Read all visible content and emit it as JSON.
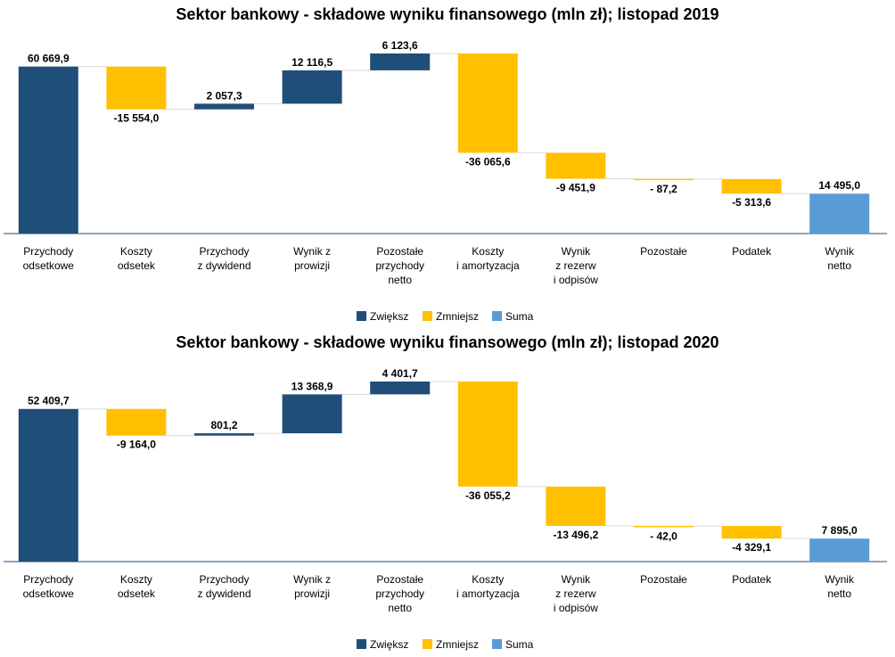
{
  "chart_data": [
    {
      "type": "waterfall",
      "title": "Sektor bankowy - składowe wyniku finansowego (mln zł); listopad 2019",
      "categories": [
        [
          "Przychody",
          "odsetkowe"
        ],
        [
          "Koszty",
          "odsetek"
        ],
        [
          "Przychody",
          "z dywidend"
        ],
        [
          "Wynik z",
          "prowizji"
        ],
        [
          "Pozostałe",
          "przychody",
          "netto"
        ],
        [
          "Koszty",
          "i amortyzacja"
        ],
        [
          "Wynik",
          "z rezerw",
          "i odpisów"
        ],
        [
          "Pozostałe"
        ],
        [
          "Podatek"
        ],
        [
          "Wynik",
          "netto"
        ]
      ],
      "values": [
        60669.9,
        -15554.0,
        2057.3,
        12116.5,
        6123.6,
        -36065.6,
        -9451.9,
        -87.2,
        -5313.6,
        14495.0
      ],
      "value_labels": [
        "60 669,9",
        "-15 554,0",
        "2 057,3",
        "12 116,5",
        "6 123,6",
        "-36 065,6",
        "-9 451,9",
        "- 87,2",
        "-5 313,6",
        "14 495,0"
      ],
      "measure": [
        "relative",
        "relative",
        "relative",
        "relative",
        "relative",
        "relative",
        "relative",
        "relative",
        "relative",
        "total"
      ],
      "legend": [
        {
          "name": "Zwiększ",
          "color": "#1f4e79"
        },
        {
          "name": "Zmniejsz",
          "color": "#ffc000"
        },
        {
          "name": "Suma",
          "color": "#5b9bd5"
        }
      ]
    },
    {
      "type": "waterfall",
      "title": "Sektor bankowy - składowe wyniku finansowego (mln zł); listopad 2020",
      "categories": [
        [
          "Przychody",
          "odsetkowe"
        ],
        [
          "Koszty",
          "odsetek"
        ],
        [
          "Przychody",
          "z dywidend"
        ],
        [
          "Wynik z",
          "prowizji"
        ],
        [
          "Pozostałe",
          "przychody",
          "netto"
        ],
        [
          "Koszty",
          "i amortyzacja"
        ],
        [
          "Wynik",
          "z rezerw",
          "i odpisów"
        ],
        [
          "Pozostałe"
        ],
        [
          "Podatek"
        ],
        [
          "Wynik",
          "netto"
        ]
      ],
      "values": [
        52409.7,
        -9164.0,
        801.2,
        13368.9,
        4401.7,
        -36055.2,
        -13496.2,
        -42.0,
        -4329.1,
        7895.0
      ],
      "value_labels": [
        "52 409,7",
        "-9 164,0",
        "801,2",
        "13 368,9",
        "4 401,7",
        "-36 055,2",
        "-13 496,2",
        "- 42,0",
        "-4 329,1",
        "7 895,0"
      ],
      "measure": [
        "relative",
        "relative",
        "relative",
        "relative",
        "relative",
        "relative",
        "relative",
        "relative",
        "relative",
        "total"
      ],
      "legend": [
        {
          "name": "Zwiększ",
          "color": "#1f4e79"
        },
        {
          "name": "Zmniejsz",
          "color": "#ffc000"
        },
        {
          "name": "Suma",
          "color": "#5b9bd5"
        }
      ]
    }
  ]
}
